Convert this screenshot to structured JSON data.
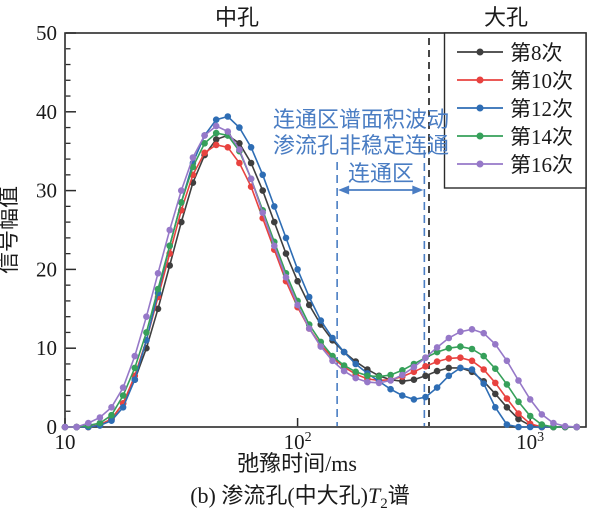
{
  "figure": {
    "kind": "scientific line chart",
    "background": "#ffffff"
  },
  "regions": {
    "mid": "中孔",
    "big": "大孔"
  },
  "axes": {
    "x_label": "弛豫时间/ms",
    "y_label": "信号幅值",
    "y_ticks": [
      0,
      10,
      20,
      30,
      40,
      50
    ],
    "x_ticks": [
      {
        "base": "10",
        "sup": ""
      },
      {
        "base": "10",
        "sup": "2"
      },
      {
        "base": "10",
        "sup": "3"
      }
    ]
  },
  "annotations": {
    "line1": "连通区谱面积波动",
    "line2": "渗流孔非稳定连通",
    "zone_label": "连通区",
    "color": "#4a7dc3"
  },
  "caption": {
    "prefix": "(b) 渗流孔(中大孔)",
    "tvar": "T",
    "tsub": "2",
    "suffix": "谱"
  },
  "legend": {
    "items": [
      {
        "label": "第8次",
        "color": "#3f3f3f"
      },
      {
        "label": "第10次",
        "color": "#e8423f"
      },
      {
        "label": "第12次",
        "color": "#2e6db4"
      },
      {
        "label": "第14次",
        "color": "#36a05a"
      },
      {
        "label": "第16次",
        "color": "#9678c8"
      }
    ]
  },
  "chart_data": {
    "type": "line",
    "title": "",
    "xlabel": "弛豫时间/ms",
    "ylabel": "信号幅值",
    "x_scale": "log10",
    "x_range_log10": [
      1.0,
      3.24
    ],
    "ylim": [
      0,
      50
    ],
    "y_major_tick": 10,
    "y_minor_tick": 2,
    "x_tick_values_ms": [
      10,
      100,
      1000
    ],
    "grid": false,
    "legend_position": "top-right",
    "x_log10": [
      1.0,
      1.05,
      1.1,
      1.15,
      1.2,
      1.25,
      1.3,
      1.35,
      1.4,
      1.45,
      1.5,
      1.55,
      1.6,
      1.65,
      1.7,
      1.75,
      1.8,
      1.85,
      1.9,
      1.95,
      2.0,
      2.05,
      2.1,
      2.15,
      2.2,
      2.25,
      2.3,
      2.35,
      2.4,
      2.45,
      2.5,
      2.55,
      2.6,
      2.65,
      2.7,
      2.75,
      2.8,
      2.85,
      2.9,
      2.95,
      3.0,
      3.05,
      3.1,
      3.15,
      3.2
    ],
    "series": [
      {
        "name": "第8次",
        "color": "#3f3f3f",
        "values": [
          0,
          0,
          0,
          0.2,
          1,
          3,
          6,
          10,
          15,
          20.5,
          26,
          31,
          34.5,
          36.5,
          37,
          36,
          33.5,
          30,
          26,
          22,
          18.5,
          15.5,
          13,
          11,
          9.5,
          8.3,
          7.3,
          6.5,
          6.0,
          5.8,
          6.0,
          6.5,
          7.1,
          7.5,
          7.5,
          7.0,
          5.8,
          4.2,
          2.5,
          1.0,
          0.2,
          0,
          0,
          0,
          0
        ]
      },
      {
        "name": "第10次",
        "color": "#e8423f",
        "values": [
          0,
          0,
          0,
          0.3,
          1,
          3,
          6.5,
          11,
          16.5,
          22,
          27.5,
          32,
          34.8,
          35.8,
          35.5,
          33.5,
          30.5,
          26.5,
          22.5,
          18.5,
          15.2,
          12.5,
          10.4,
          8.8,
          7.6,
          6.7,
          6.1,
          5.9,
          6.0,
          6.4,
          7.0,
          7.7,
          8.3,
          8.7,
          8.8,
          8.4,
          7.3,
          5.6,
          3.6,
          1.7,
          0.4,
          0,
          0,
          0,
          0
        ]
      },
      {
        "name": "第12次",
        "color": "#2e6db4",
        "values": [
          0,
          0,
          0,
          0.2,
          0.8,
          2.5,
          6,
          11,
          17,
          23,
          28.5,
          33.5,
          37,
          39,
          39.4,
          38,
          35.5,
          32,
          28,
          24,
          20,
          16.5,
          13.5,
          11.3,
          9.5,
          8.0,
          6.8,
          5.8,
          4.8,
          4.0,
          3.5,
          3.8,
          5.0,
          6.5,
          7.5,
          7.3,
          5.5,
          2.5,
          0.3,
          0,
          0,
          0,
          0,
          0,
          0
        ]
      },
      {
        "name": "第14次",
        "color": "#36a05a",
        "values": [
          0,
          0,
          0.2,
          0.5,
          1.5,
          4,
          7.5,
          12,
          17.5,
          23,
          28.5,
          33,
          36,
          37.3,
          37,
          35,
          31.5,
          27.5,
          23.5,
          19.5,
          16,
          13,
          10.8,
          9.0,
          7.8,
          7.0,
          6.5,
          6.4,
          6.6,
          7.2,
          8.0,
          8.8,
          9.5,
          10.0,
          10.2,
          9.9,
          9.0,
          7.4,
          5.4,
          3.2,
          1.4,
          0.3,
          0,
          0,
          0
        ]
      },
      {
        "name": "第16次",
        "color": "#9678c8",
        "values": [
          0,
          0,
          0.5,
          1.2,
          2.5,
          5,
          9,
          14,
          19.5,
          25,
          30,
          34.2,
          37,
          38.2,
          37.5,
          35.2,
          31.5,
          27.2,
          23,
          19,
          15.5,
          12.5,
          10.2,
          8.4,
          7.1,
          6.2,
          5.7,
          5.6,
          5.9,
          6.6,
          7.6,
          8.8,
          10.1,
          11.3,
          12.1,
          12.4,
          11.9,
          10.5,
          8.4,
          5.9,
          3.5,
          1.6,
          0.5,
          0.1,
          0
        ]
      }
    ],
    "reference_lines": {
      "pore_boundary_log10": 2.565,
      "pore_boundary_style": "black dashed vertical",
      "zone_left_log10": 2.17,
      "zone_right_log10": 2.545,
      "zone_style": "blue dashed verticals with double-headed arrow"
    }
  }
}
